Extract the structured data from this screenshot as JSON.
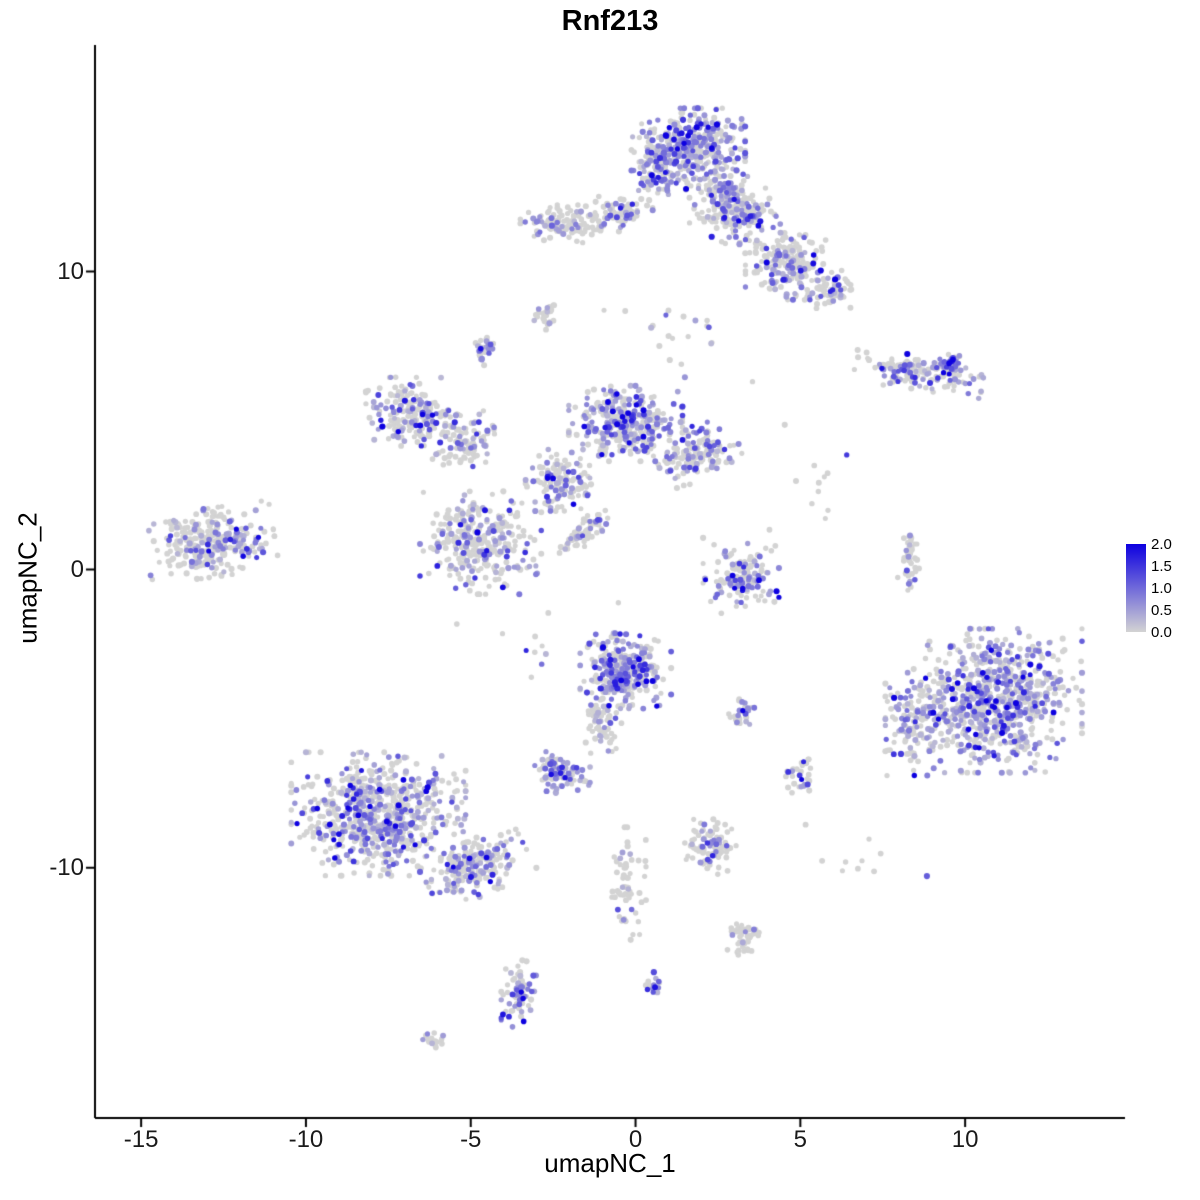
{
  "title": "Rnf213",
  "axes": {
    "x_label": "umapNC_1",
    "y_label": "umapNC_2"
  },
  "legend": {
    "tick_labels": [
      "2.0",
      "1.5",
      "1.0",
      "0.5",
      "0.0"
    ],
    "tick_values": [
      2.0,
      1.5,
      1.0,
      0.5,
      0.0
    ],
    "high_color": "#0D00E0",
    "low_color": "#D3D3D3"
  },
  "chart_data": {
    "type": "scatter",
    "title": "Rnf213",
    "xlabel": "umapNC_1",
    "ylabel": "umapNC_2",
    "xlim": [
      -16.4,
      14.85
    ],
    "ylim": [
      -18.4,
      17.6
    ],
    "x_ticks": [
      -15,
      -10,
      -5,
      0,
      5,
      10
    ],
    "x_tick_labels": [
      "-15",
      "-10",
      "-5",
      "0",
      "5",
      "10"
    ],
    "y_ticks": [
      10,
      0,
      -10
    ],
    "y_tick_labels": [
      "10",
      "0",
      "-10"
    ],
    "grid": false,
    "legend_position": "right",
    "point_radius": 2.5,
    "color_scale": {
      "low": "#D3D3D3",
      "high": "#0D00E0",
      "domain": [
        0,
        2
      ]
    },
    "seed": 421337,
    "clusters": [
      {
        "name": "top-main",
        "cx": 1.6,
        "cy": 14.1,
        "rx": 1.5,
        "ry": 1.2,
        "rot": 0,
        "n": 380,
        "expr_frac": 0.55
      },
      {
        "name": "top-main-west",
        "cx": 0.6,
        "cy": 13.4,
        "rx": 0.6,
        "ry": 0.9,
        "rot": 0,
        "n": 80,
        "expr_frac": 0.5
      },
      {
        "name": "top-arm",
        "cx": 3.0,
        "cy": 12.1,
        "rx": 1.4,
        "ry": 1.0,
        "rot": -0.5,
        "n": 240,
        "expr_frac": 0.35
      },
      {
        "name": "top-right",
        "cx": 4.6,
        "cy": 10.2,
        "rx": 1.1,
        "ry": 1.0,
        "rot": 0,
        "n": 190,
        "expr_frac": 0.3
      },
      {
        "name": "top-right-blob",
        "cx": 6.0,
        "cy": 9.4,
        "rx": 0.7,
        "ry": 0.55,
        "rot": 0,
        "n": 70,
        "expr_frac": 0.3
      },
      {
        "name": "top-left",
        "cx": -2.0,
        "cy": 11.6,
        "rx": 1.3,
        "ry": 0.55,
        "rot": 0,
        "n": 130,
        "expr_frac": 0.18
      },
      {
        "name": "top-left-arm",
        "cx": -0.4,
        "cy": 12.0,
        "rx": 0.8,
        "ry": 0.45,
        "rot": 0,
        "n": 60,
        "expr_frac": 0.2
      },
      {
        "name": "blob-mid-top",
        "cx": -2.8,
        "cy": 8.5,
        "rx": 0.3,
        "ry": 0.4,
        "rot": 0,
        "n": 25,
        "expr_frac": 0.3
      },
      {
        "name": "right-strip",
        "cx": 8.6,
        "cy": 6.6,
        "rx": 1.7,
        "ry": 0.5,
        "rot": -0.15,
        "n": 150,
        "expr_frac": 0.45
      },
      {
        "name": "right-strip-tip",
        "cx": 9.6,
        "cy": 6.9,
        "rx": 0.5,
        "ry": 0.35,
        "rot": 0,
        "n": 40,
        "expr_frac": 0.6
      },
      {
        "name": "small-upper-left",
        "cx": -4.6,
        "cy": 7.4,
        "rx": 0.35,
        "ry": 0.5,
        "rot": 0,
        "n": 30,
        "expr_frac": 0.4
      },
      {
        "name": "left-mid",
        "cx": -6.8,
        "cy": 5.3,
        "rx": 1.2,
        "ry": 1.0,
        "rot": 0,
        "n": 180,
        "expr_frac": 0.35
      },
      {
        "name": "left-mid-arm",
        "cx": -5.2,
        "cy": 4.3,
        "rx": 1.0,
        "ry": 0.8,
        "rot": 0.4,
        "n": 100,
        "expr_frac": 0.3
      },
      {
        "name": "central",
        "cx": -0.3,
        "cy": 4.9,
        "rx": 1.5,
        "ry": 1.1,
        "rot": 0,
        "n": 340,
        "expr_frac": 0.5
      },
      {
        "name": "central-right-arm",
        "cx": 1.9,
        "cy": 3.9,
        "rx": 1.1,
        "ry": 0.8,
        "rot": 0.3,
        "n": 160,
        "expr_frac": 0.4
      },
      {
        "name": "central-bridge",
        "cx": -2.3,
        "cy": 3.0,
        "rx": 0.9,
        "ry": 0.9,
        "rot": 0,
        "n": 130,
        "expr_frac": 0.3
      },
      {
        "name": "mid-left-cluster",
        "cx": -4.7,
        "cy": 0.9,
        "rx": 1.6,
        "ry": 1.5,
        "rot": 0,
        "n": 290,
        "expr_frac": 0.35
      },
      {
        "name": "diag-streak",
        "cx": -1.6,
        "cy": 1.2,
        "rx": 0.9,
        "ry": 0.3,
        "rot": 0.75,
        "n": 70,
        "expr_frac": 0.25
      },
      {
        "name": "far-left",
        "cx": -12.9,
        "cy": 0.9,
        "rx": 1.7,
        "ry": 1.0,
        "rot": 0.15,
        "n": 300,
        "expr_frac": 0.25
      },
      {
        "name": "mid-right",
        "cx": 3.2,
        "cy": -0.2,
        "rx": 1.0,
        "ry": 1.1,
        "rot": 0,
        "n": 140,
        "expr_frac": 0.35
      },
      {
        "name": "tiny-right-strip",
        "cx": 8.3,
        "cy": 0.3,
        "rx": 0.3,
        "ry": 0.9,
        "rot": 0,
        "n": 40,
        "expr_frac": 0.2
      },
      {
        "name": "center-bottom",
        "cx": -0.3,
        "cy": -3.4,
        "rx": 1.2,
        "ry": 1.1,
        "rot": 0,
        "n": 300,
        "expr_frac": 0.55
      },
      {
        "name": "cb-tail",
        "cx": -1.0,
        "cy": -5.2,
        "rx": 0.5,
        "ry": 0.9,
        "rot": 0,
        "n": 60,
        "expr_frac": 0.3
      },
      {
        "name": "small-mid",
        "cx": 3.2,
        "cy": -4.8,
        "rx": 0.35,
        "ry": 0.45,
        "rot": 0,
        "n": 30,
        "expr_frac": 0.4
      },
      {
        "name": "big-right",
        "cx": 10.9,
        "cy": -4.4,
        "rx": 2.3,
        "ry": 2.1,
        "rot": 0,
        "n": 750,
        "expr_frac": 0.5
      },
      {
        "name": "big-right-west",
        "cx": 8.5,
        "cy": -5.3,
        "rx": 0.8,
        "ry": 1.4,
        "rot": 0,
        "n": 130,
        "expr_frac": 0.4
      },
      {
        "name": "small-left-mid",
        "cx": -2.3,
        "cy": -6.8,
        "rx": 0.8,
        "ry": 0.6,
        "rot": 0,
        "n": 100,
        "expr_frac": 0.55
      },
      {
        "name": "bottom-left",
        "cx": -7.8,
        "cy": -8.2,
        "rx": 2.3,
        "ry": 1.8,
        "rot": 0,
        "n": 700,
        "expr_frac": 0.4
      },
      {
        "name": "bottom-left-arm",
        "cx": -4.8,
        "cy": -10.0,
        "rx": 1.4,
        "ry": 0.8,
        "rot": 0.45,
        "n": 220,
        "expr_frac": 0.35
      },
      {
        "name": "small-bottom-mid",
        "cx": 2.3,
        "cy": -9.3,
        "rx": 0.7,
        "ry": 0.8,
        "rot": 0,
        "n": 90,
        "expr_frac": 0.25
      },
      {
        "name": "blob-right-low",
        "cx": 5.0,
        "cy": -7.0,
        "rx": 0.4,
        "ry": 0.55,
        "rot": 0,
        "n": 30,
        "expr_frac": 0.3
      },
      {
        "name": "trail-down",
        "cx": -0.2,
        "cy": -10.6,
        "rx": 0.45,
        "ry": 1.7,
        "rot": 0,
        "n": 60,
        "expr_frac": 0.2
      },
      {
        "name": "bottom-purple",
        "cx": -3.5,
        "cy": -14.2,
        "rx": 0.5,
        "ry": 1.0,
        "rot": 0,
        "n": 70,
        "expr_frac": 0.5
      },
      {
        "name": "tiny-bottom-left",
        "cx": -6.1,
        "cy": -15.8,
        "rx": 0.4,
        "ry": 0.3,
        "rot": 0,
        "n": 18,
        "expr_frac": 0.2
      },
      {
        "name": "tiny-bottom-mid",
        "cx": 0.6,
        "cy": -13.9,
        "rx": 0.25,
        "ry": 0.35,
        "rot": 0,
        "n": 15,
        "expr_frac": 0.5
      },
      {
        "name": "blob-bottom-mid",
        "cx": 3.3,
        "cy": -12.3,
        "rx": 0.5,
        "ry": 0.55,
        "rot": 0,
        "n": 45,
        "expr_frac": 0.1
      },
      {
        "name": "sparse-upper-mid",
        "cx": 0.8,
        "cy": 7.8,
        "rx": 2.6,
        "ry": 1.3,
        "rot": 0,
        "n": 22,
        "expr_frac": 0.15
      },
      {
        "name": "sparse-mid",
        "cx": -3.0,
        "cy": -2.4,
        "rx": 2.2,
        "ry": 1.6,
        "rot": 0,
        "n": 16,
        "expr_frac": 0.1
      },
      {
        "name": "sparse-right",
        "cx": 5.6,
        "cy": 2.6,
        "rx": 1.6,
        "ry": 2.6,
        "rot": 0,
        "n": 12,
        "expr_frac": 0.1
      },
      {
        "name": "sparse-low-right",
        "cx": 7.0,
        "cy": -9.6,
        "rx": 1.6,
        "ry": 1.1,
        "rot": 0,
        "n": 10,
        "expr_frac": 0.1
      }
    ]
  }
}
